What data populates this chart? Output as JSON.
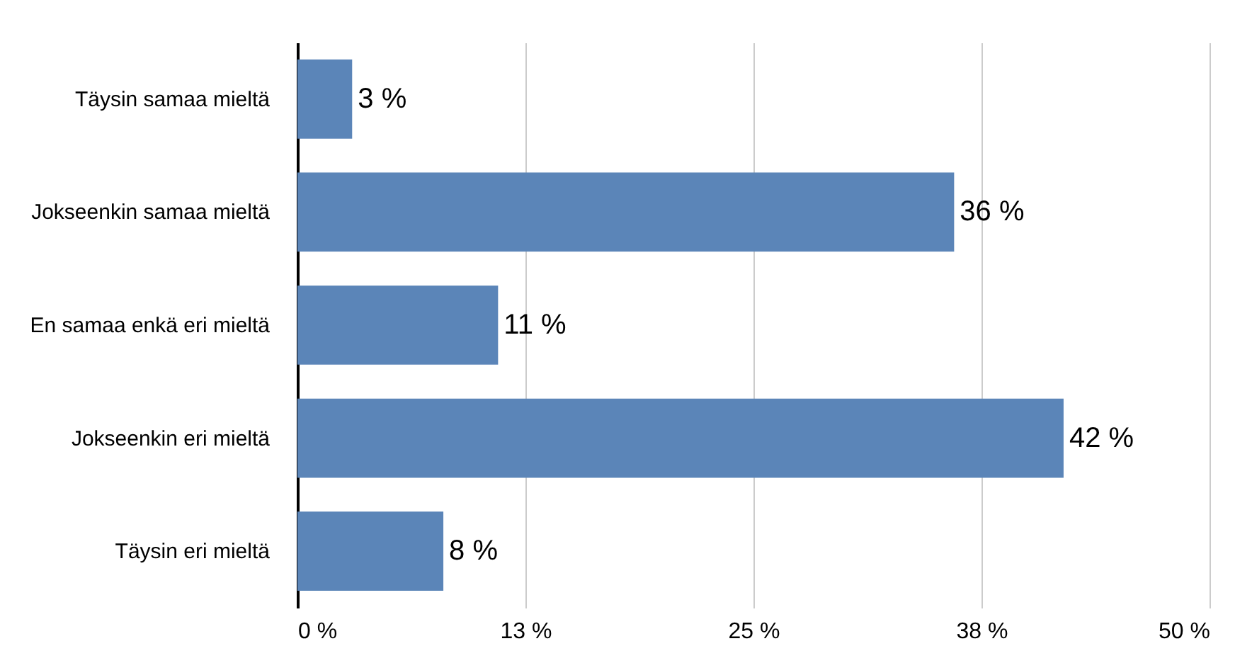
{
  "chart_data": {
    "type": "bar",
    "orientation": "horizontal",
    "categories": [
      "Täysin samaa mieltä",
      "Jokseenkin samaa mieltä",
      "En samaa enkä eri mieltä",
      "Jokseenkin eri mieltä",
      "Täysin eri mieltä"
    ],
    "values": [
      3,
      36,
      11,
      42,
      8
    ],
    "value_labels": [
      "3 %",
      "36 %",
      "11 %",
      "42 %",
      "8 %"
    ],
    "color": "#5b85b8",
    "xlim": [
      0,
      50
    ],
    "xticks": [
      {
        "value": 0,
        "label": "0 %"
      },
      {
        "value": 12.5,
        "label": "13 %"
      },
      {
        "value": 25,
        "label": "25 %"
      },
      {
        "value": 37.5,
        "label": "38 %"
      },
      {
        "value": 50,
        "label": "50 %"
      }
    ],
    "grid": "x"
  }
}
